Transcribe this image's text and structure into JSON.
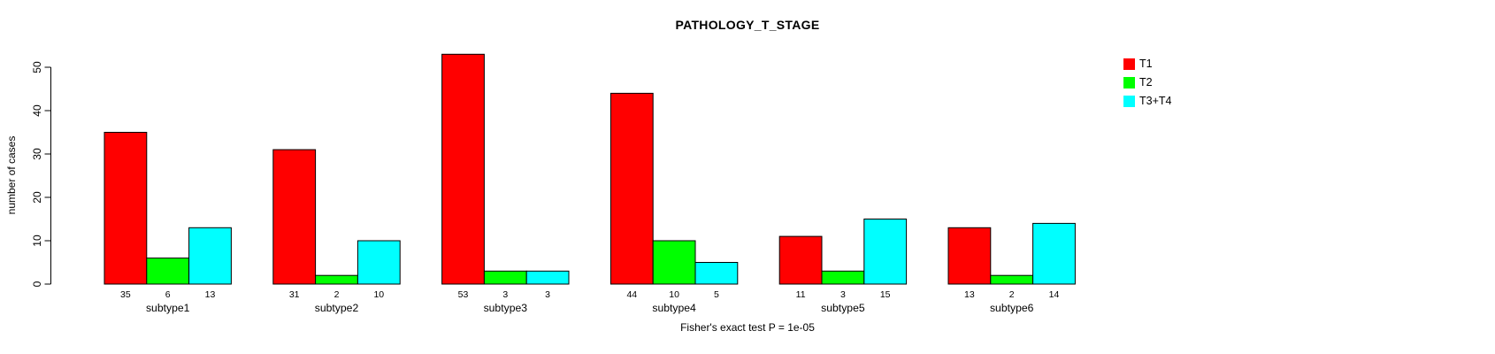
{
  "chart_data": {
    "type": "bar",
    "grouped": true,
    "title": "PATHOLOGY_T_STAGE",
    "xlabel": "",
    "ylabel": "number of cases",
    "caption": "Fisher's exact test P = 1e-05",
    "categories": [
      "subtype1",
      "subtype2",
      "subtype3",
      "subtype4",
      "subtype5",
      "subtype6"
    ],
    "series": [
      {
        "name": "T1",
        "color": "#ff0000",
        "values": [
          35,
          31,
          53,
          44,
          11,
          13
        ]
      },
      {
        "name": "T2",
        "color": "#00ff00",
        "values": [
          6,
          2,
          3,
          10,
          3,
          2
        ]
      },
      {
        "name": "T3+T4",
        "color": "#00ffff",
        "values": [
          13,
          10,
          3,
          5,
          15,
          14
        ]
      }
    ],
    "yticks": [
      0,
      10,
      20,
      30,
      40,
      50
    ],
    "ylim": [
      0,
      53
    ],
    "grid": false,
    "bar_value_labels": true,
    "bar_border_color": "#000000",
    "legend_position": "right",
    "background_color": "#ffffff"
  }
}
